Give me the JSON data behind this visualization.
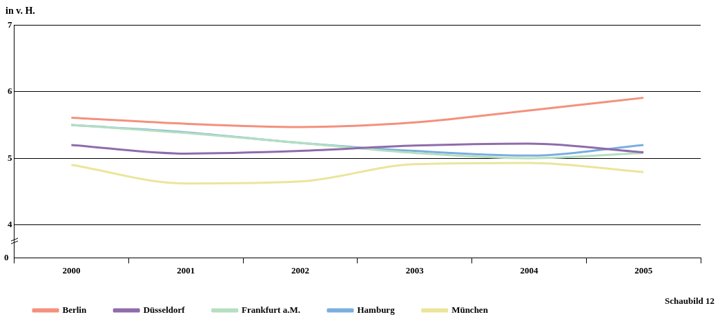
{
  "chart_data": {
    "type": "line",
    "ylabel": "in v. H.",
    "annotations": [
      "0",
      "Schaubild 12"
    ],
    "categories": [
      "2000",
      "2001",
      "2002",
      "2003",
      "2004",
      "2005"
    ],
    "series": [
      {
        "name": "Berlin",
        "color": "#f4907c",
        "values": [
          5.61,
          5.52,
          5.47,
          5.54,
          5.72,
          5.91
        ]
      },
      {
        "name": "Düsseldorf",
        "color": "#8f6bab",
        "values": [
          5.2,
          5.07,
          5.11,
          5.19,
          5.22,
          5.09
        ]
      },
      {
        "name": "Frankfurt a.M.",
        "color": "#b5dfbf",
        "values": [
          5.5,
          5.38,
          5.23,
          5.08,
          5.0,
          5.08
        ]
      },
      {
        "name": "Hamburg",
        "color": "#7aaee0",
        "values": [
          5.5,
          5.39,
          5.23,
          5.11,
          5.04,
          5.2
        ]
      },
      {
        "name": "München",
        "color": "#ebe59a",
        "values": [
          4.9,
          4.62,
          4.65,
          4.91,
          4.93,
          4.79
        ]
      }
    ],
    "ylim": [
      3.5,
      7
    ],
    "yticks": [
      4,
      5,
      6,
      7
    ],
    "grid": "y",
    "legend": "bottom left",
    "marker": "none",
    "line_style": "solid"
  }
}
